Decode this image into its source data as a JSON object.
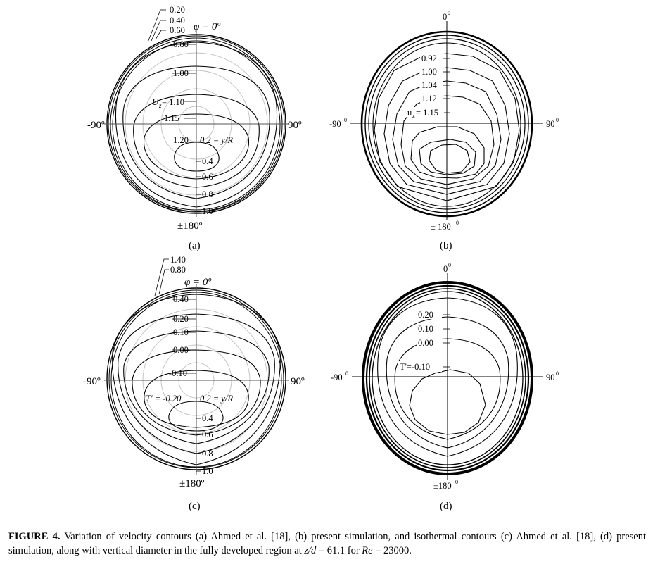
{
  "panels": {
    "a": {
      "label": "(a)",
      "top_label": "φ = 0º",
      "bottom_label": "±180º",
      "left_label": "-90º",
      "right_label": "90º",
      "contour_labels": [
        "0.20",
        "0.40",
        "0.60",
        "0.80",
        "1.00",
        "U",
        "z",
        " = 1.10",
        "1.15",
        "1.20"
      ],
      "radial_labels": [
        "0.2 = y/R",
        "0.4",
        "0.6",
        "0.8",
        "1.0"
      ]
    },
    "b": {
      "label": "(b)",
      "top_label": "0",
      "top_sup": "0",
      "bottom_label": "± 180",
      "bottom_sup": "0",
      "left_label": "-90",
      "left_sup": "0",
      "right_label": "90",
      "right_sup": "0",
      "contour_labels": [
        "0.92",
        "1.00",
        "1.04",
        "1.12",
        "u",
        "z",
        "= 1.15"
      ]
    },
    "c": {
      "label": "(c)",
      "top_label": "φ = 0º",
      "bottom_label": "±180º",
      "left_label": "-90º",
      "right_label": "90º",
      "contour_labels": [
        "1.40",
        "0.80",
        "0.40",
        "0.20",
        "0.10",
        "0.00",
        "-0.10",
        "T′ = -0.20"
      ],
      "radial_labels": [
        "0.2 = y/R",
        "0.4",
        "0.6",
        "0.8",
        "1.0"
      ]
    },
    "d": {
      "label": "(d)",
      "top_label": "0",
      "top_sup": "0",
      "bottom_label": "±180",
      "bottom_sup": "0",
      "left_label": "-90",
      "left_sup": "0",
      "right_label": "90",
      "right_sup": "0",
      "contour_labels": [
        "0.20",
        "0.10",
        "0.00",
        "T'=-0.10"
      ]
    }
  },
  "caption": {
    "bold_prefix": "FIGURE 4.",
    "part1": "  Variation of velocity contours (a) Ahmed et al. [18], (b) present simulation, and isothermal contours (c) Ahmed et al. [18], (d) present simulation, along with vertical diameter in the fully developed region at ",
    "z_over_d": "z/d",
    "part2": " = 61.1 for ",
    "re": "Re",
    "part3": " = 23000."
  }
}
